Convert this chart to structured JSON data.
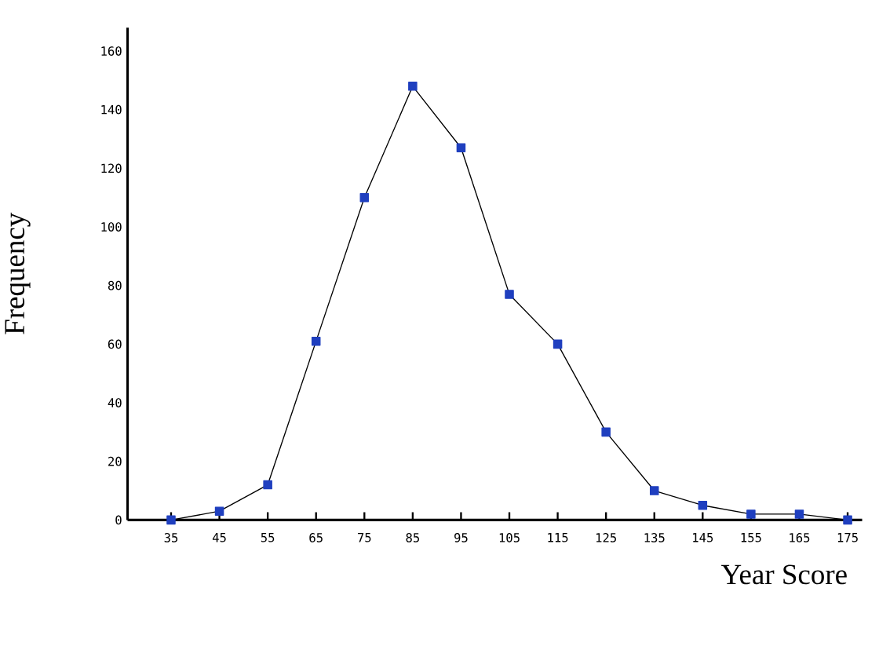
{
  "chart_data": {
    "type": "line",
    "xlabel": "Year Score",
    "ylabel": "Frequency",
    "x": [
      35,
      45,
      55,
      65,
      75,
      85,
      95,
      105,
      115,
      125,
      135,
      145,
      155,
      165,
      175
    ],
    "series": [
      {
        "color": "#1f3fbf",
        "values": [
          0,
          3,
          12,
          61,
          110,
          148,
          127,
          77,
          60,
          30,
          10,
          5,
          2,
          2,
          0
        ]
      }
    ],
    "xlim": [
      26,
      178
    ],
    "ylim": [
      0,
      168
    ],
    "xticks": [
      35,
      45,
      55,
      65,
      75,
      85,
      95,
      105,
      115,
      125,
      135,
      145,
      155,
      165,
      175
    ],
    "yticks": [
      0,
      20,
      40,
      60,
      80,
      100,
      120,
      140,
      160
    ],
    "marker": "square",
    "line_style": "solid",
    "grid": false
  }
}
